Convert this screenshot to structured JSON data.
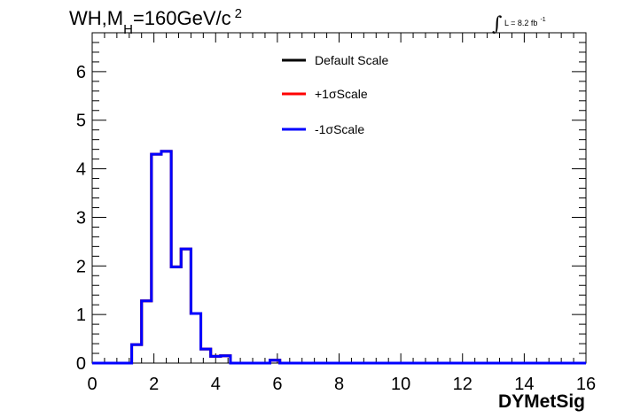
{
  "chart_data": {
    "type": "histogram",
    "title": {
      "main": "WH,M",
      "subscript": "H",
      "rest": "=160GeV/c",
      "superscript": "2"
    },
    "luminosity": {
      "symbol": "∫",
      "text": "L = 8.2 fb",
      "superscript": "-1"
    },
    "xlabel": "DYMetSig",
    "xlim": [
      0,
      16
    ],
    "ylim": [
      0,
      6.8
    ],
    "xticks": [
      0,
      2,
      4,
      6,
      8,
      10,
      12,
      14,
      16
    ],
    "yticks": [
      0,
      1,
      2,
      3,
      4,
      5,
      6
    ],
    "bin_width": 0.32,
    "legend_position": "top-center",
    "series": [
      {
        "name": "Default Scale",
        "color": "#000000",
        "values": [
          0,
          0,
          0,
          0,
          0.38,
          1.28,
          4.3,
          4.36,
          1.98,
          2.35,
          1.02,
          0.29,
          0.14,
          0.15,
          0,
          0,
          0,
          0,
          0.06,
          0,
          0,
          0,
          0,
          0,
          0,
          0,
          0,
          0,
          0,
          0,
          0,
          0,
          0,
          0,
          0,
          0,
          0,
          0,
          0,
          0,
          0,
          0,
          0,
          0,
          0,
          0,
          0,
          0,
          0,
          0
        ]
      },
      {
        "name": "+1σScale",
        "color": "#ff0000",
        "values": [
          0,
          0,
          0,
          0,
          0.38,
          1.28,
          4.3,
          4.36,
          1.98,
          2.35,
          1.02,
          0.29,
          0.14,
          0.15,
          0,
          0,
          0,
          0,
          0.06,
          0,
          0,
          0,
          0,
          0,
          0,
          0,
          0,
          0,
          0,
          0,
          0,
          0,
          0,
          0,
          0,
          0,
          0,
          0,
          0,
          0,
          0,
          0,
          0,
          0,
          0,
          0,
          0,
          0,
          0,
          0
        ]
      },
      {
        "name": "-1σScale",
        "color": "#0000ff",
        "values": [
          0,
          0,
          0,
          0,
          0.38,
          1.28,
          4.3,
          4.36,
          1.98,
          2.35,
          1.02,
          0.29,
          0.14,
          0.15,
          0,
          0,
          0,
          0,
          0.06,
          0,
          0,
          0,
          0,
          0,
          0,
          0,
          0,
          0,
          0,
          0,
          0,
          0,
          0,
          0,
          0,
          0,
          0,
          0,
          0,
          0,
          0,
          0,
          0,
          0,
          0,
          0,
          0,
          0,
          0,
          0
        ]
      }
    ]
  }
}
